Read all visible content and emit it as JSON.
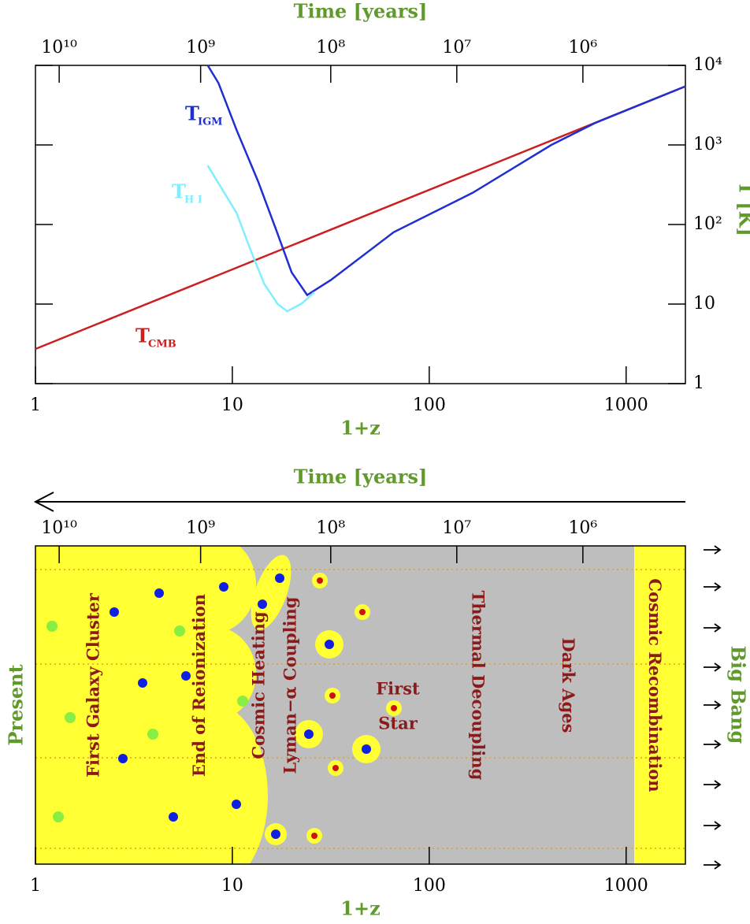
{
  "chart_data": [
    {
      "type": "line",
      "x_label": "1+z",
      "x2_label": "Time [years]",
      "y_label": "T [K]",
      "log_x": true,
      "log_y": true,
      "xlim": [
        1,
        2000
      ],
      "xticks": [
        1,
        10,
        100,
        1000
      ],
      "x2ticks": [
        {
          "value": 1.32,
          "label": "10¹⁰"
        },
        {
          "value": 6.9,
          "label": "10⁹"
        },
        {
          "value": 31.6,
          "label": "10⁸"
        },
        {
          "value": 138,
          "label": "10⁷"
        },
        {
          "value": 603,
          "label": "10⁶"
        }
      ],
      "ylim": [
        1,
        10000
      ],
      "yticks": [
        1,
        10,
        {
          "value": 100,
          "label": "10²"
        },
        {
          "value": 1000,
          "label": "10³"
        },
        {
          "value": 10000,
          "label": "10⁴"
        }
      ],
      "series": [
        {
          "name": "CMB",
          "symbol": "T",
          "color": "#cc1f1f",
          "x": [
            1,
            2000
          ],
          "values": [
            2.725,
            5450
          ]
        },
        {
          "name": "IGM",
          "symbol": "T",
          "color": "#1f2fd0",
          "x": [
            7.5,
            8.5,
            10.5,
            13.5,
            16.6,
            20,
            24,
            31.6,
            66,
            166,
            417,
            700,
            2000
          ],
          "values": [
            10000,
            6000,
            1550,
            350,
            89,
            25,
            13,
            20,
            80,
            250,
            1000,
            1900,
            5450
          ]
        },
        {
          "name": "H I",
          "symbol": "T",
          "color": "#7fefff",
          "x": [
            7.5,
            10.5,
            12.5,
            14.5,
            17,
            19,
            22.6,
            26
          ],
          "values": [
            550,
            140,
            45,
            18,
            10,
            8.1,
            10.2,
            14
          ]
        }
      ]
    },
    {
      "type": "timeline",
      "x_label": "1+z",
      "x2_label": "Time [years]",
      "log_x": true,
      "xlim": [
        1,
        2000
      ],
      "xticks": [
        1,
        10,
        100,
        1000
      ],
      "x2ticks": [
        {
          "value": 1.32,
          "label": "10¹⁰"
        },
        {
          "value": 6.9,
          "label": "10⁹"
        },
        {
          "value": 31.6,
          "label": "10⁸"
        },
        {
          "value": 138,
          "label": "10⁷"
        },
        {
          "value": 603,
          "label": "10⁶"
        }
      ],
      "left_label": "Present",
      "right_label": "Big Bang",
      "regions": [
        {
          "from": 1,
          "to": 7.9,
          "color": "#ffff33"
        },
        {
          "from": 7.9,
          "to": 1100,
          "color": "#bebebe"
        },
        {
          "from": 1100,
          "to": 2000,
          "color": "#ffff33"
        }
      ],
      "labels": [
        {
          "text": "First Galaxy Cluster",
          "at": 2.0,
          "orientation": "up"
        },
        {
          "text": "End of Reionization",
          "at": 6.9,
          "orientation": "up"
        },
        {
          "text": "Cosmic Heating",
          "at": 13.8,
          "orientation": "up"
        },
        {
          "text": "Lyman−α Coupling",
          "at": 20,
          "orientation": "up"
        },
        {
          "text": "Thermal Decoupling",
          "at": 174,
          "orientation": "down"
        },
        {
          "text": "Dark Ages",
          "at": 501,
          "orientation": "down"
        },
        {
          "text": "Cosmic Recombination",
          "at": 1380,
          "orientation": "down"
        }
      ],
      "star_label": [
        "First",
        "Star"
      ],
      "label_color": "#8b1a1a"
    }
  ]
}
